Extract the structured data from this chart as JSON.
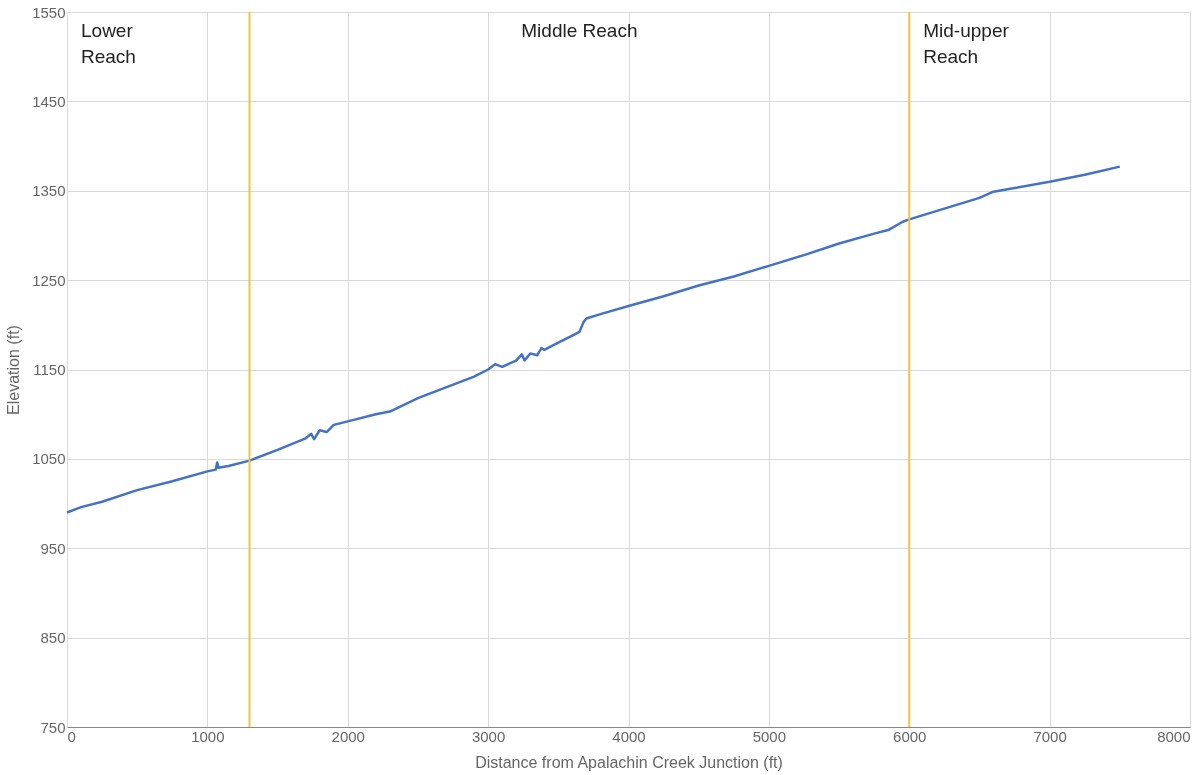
{
  "chart_data": {
    "type": "line",
    "xlabel": "Distance from Apalachin Creek Junction (ft)",
    "ylabel": "Elevation (ft)",
    "xlim": [
      0,
      8000
    ],
    "xticks": [
      0,
      1000,
      2000,
      3000,
      4000,
      5000,
      6000,
      7000,
      8000
    ],
    "ylim": [
      750,
      1550
    ],
    "yticks": [
      750,
      850,
      950,
      1050,
      1150,
      1250,
      1350,
      1450,
      1550
    ],
    "grid": true,
    "marker": "none",
    "line_style": "solid",
    "series": [
      {
        "color": "#4472c4",
        "x": [
          0,
          100,
          250,
          500,
          750,
          1000,
          1060,
          1070,
          1080,
          1150,
          1300,
          1500,
          1700,
          1740,
          1760,
          1800,
          1850,
          1900,
          2000,
          2200,
          2300,
          2500,
          2700,
          2900,
          3000,
          3050,
          3100,
          3200,
          3240,
          3260,
          3300,
          3350,
          3380,
          3400,
          3500,
          3600,
          3650,
          3680,
          3700,
          3800,
          4000,
          4250,
          4500,
          4750,
          5000,
          5250,
          5500,
          5750,
          5850,
          5950,
          6000,
          6250,
          6500,
          6600,
          6750,
          7000,
          7250,
          7500
        ],
        "values": [
          990,
          996,
          1002,
          1015,
          1025,
          1036,
          1038,
          1046,
          1040,
          1042,
          1048,
          1060,
          1073,
          1078,
          1072,
          1082,
          1080,
          1088,
          1092,
          1100,
          1103,
          1118,
          1130,
          1142,
          1150,
          1156,
          1153,
          1160,
          1167,
          1160,
          1168,
          1166,
          1174,
          1172,
          1180,
          1188,
          1192,
          1203,
          1207,
          1212,
          1221,
          1232,
          1244,
          1254,
          1266,
          1278,
          1291,
          1302,
          1306,
          1315,
          1318,
          1330,
          1342,
          1349,
          1353,
          1360,
          1368,
          1377
        ]
      }
    ],
    "ref_lines": [
      {
        "axis": "x",
        "value": 1300,
        "color": "#f5c242"
      },
      {
        "axis": "x",
        "value": 6000,
        "color": "#f5c242"
      }
    ],
    "annotations": [
      "Lower\nReach",
      "Middle Reach",
      "Mid-upper\nReach"
    ]
  }
}
